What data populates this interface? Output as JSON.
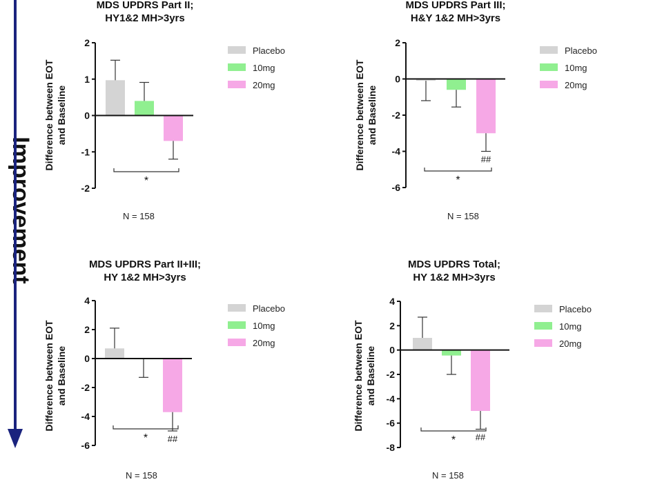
{
  "side_label": "Improvement",
  "colors": {
    "placebo": "#d4d4d4",
    "10mg": "#90ef90",
    "20mg": "#f6a8e6",
    "arrow": "#1a237e"
  },
  "legend": [
    "Placebo",
    "10mg",
    "20mg"
  ],
  "chart_data": [
    {
      "type": "bar",
      "title_lines": [
        "MDS UPDRS Part II;",
        "HY1&2 MH>3yrs"
      ],
      "ylabel_lines": [
        "Difference between EOT",
        "and Baseline"
      ],
      "categories": [
        "Placebo",
        "10mg",
        "20mg"
      ],
      "values": [
        0.97,
        0.4,
        -0.7
      ],
      "error_tips": [
        1.52,
        0.91,
        -1.2
      ],
      "ylim": [
        -2,
        2
      ],
      "yticks": [
        -2,
        -1,
        0,
        1,
        2
      ],
      "ytick_labels": [
        "-2",
        "-1",
        "0",
        "1",
        "2"
      ],
      "bar_annotations": [
        "",
        "",
        ""
      ],
      "significance": {
        "from": 0,
        "to": 2,
        "label": "*"
      },
      "n_label": "N = 158"
    },
    {
      "type": "bar",
      "title_lines": [
        "MDS UPDRS Part III;",
        "H&Y 1&2 MH>3yrs"
      ],
      "ylabel_lines": [
        "Difference between EOT",
        "and Baseline"
      ],
      "categories": [
        "Placebo",
        "10mg",
        "20mg"
      ],
      "values": [
        -0.1,
        -0.6,
        -3.0
      ],
      "error_tips": [
        -1.2,
        -1.55,
        -4.0
      ],
      "ylim": [
        -6,
        2
      ],
      "yticks": [
        -6,
        -4,
        -2,
        0,
        2
      ],
      "ytick_labels": [
        "-6",
        "-4",
        "-2",
        "0",
        "2"
      ],
      "bar_annotations": [
        "",
        "",
        "##"
      ],
      "significance": {
        "from": 0,
        "to": 2,
        "label": "*"
      },
      "n_label": "N = 158"
    },
    {
      "type": "bar",
      "title_lines": [
        "MDS UPDRS Part II+III;",
        "HY 1&2 MH>3yrs"
      ],
      "ylabel_lines": [
        "Difference between EOT",
        "and Baseline"
      ],
      "categories": [
        "Placebo",
        "10mg",
        "20mg"
      ],
      "values": [
        0.7,
        -0.05,
        -3.7
      ],
      "error_tips": [
        2.1,
        -1.3,
        -5.0
      ],
      "ylim": [
        -6,
        4
      ],
      "yticks": [
        -6,
        -4,
        -2,
        0,
        2,
        4
      ],
      "ytick_labels": [
        "-6",
        "-4",
        "-2",
        "0",
        "2",
        "4"
      ],
      "bar_annotations": [
        "",
        "",
        "##"
      ],
      "significance": {
        "from": 0,
        "to": 2,
        "label": "*"
      },
      "n_label": "N = 158"
    },
    {
      "type": "bar",
      "title_lines": [
        "MDS UPDRS Total;",
        "HY 1&2 MH>3yrs"
      ],
      "ylabel_lines": [
        "Difference between EOT",
        "and Baseline"
      ],
      "categories": [
        "Placebo",
        "10mg",
        "20mg"
      ],
      "values": [
        1.0,
        -0.45,
        -5.0
      ],
      "error_tips": [
        2.7,
        -2.0,
        -6.5
      ],
      "ylim": [
        -8,
        4
      ],
      "yticks": [
        -8,
        -6,
        -4,
        -2,
        0,
        2,
        4
      ],
      "ytick_labels": [
        "-8",
        "-6",
        "-4",
        "-2",
        "0",
        "2",
        "4"
      ],
      "bar_annotations": [
        "",
        "",
        "##"
      ],
      "significance": {
        "from": 0,
        "to": 2,
        "label": "*"
      },
      "n_label": "N = 158"
    }
  ]
}
